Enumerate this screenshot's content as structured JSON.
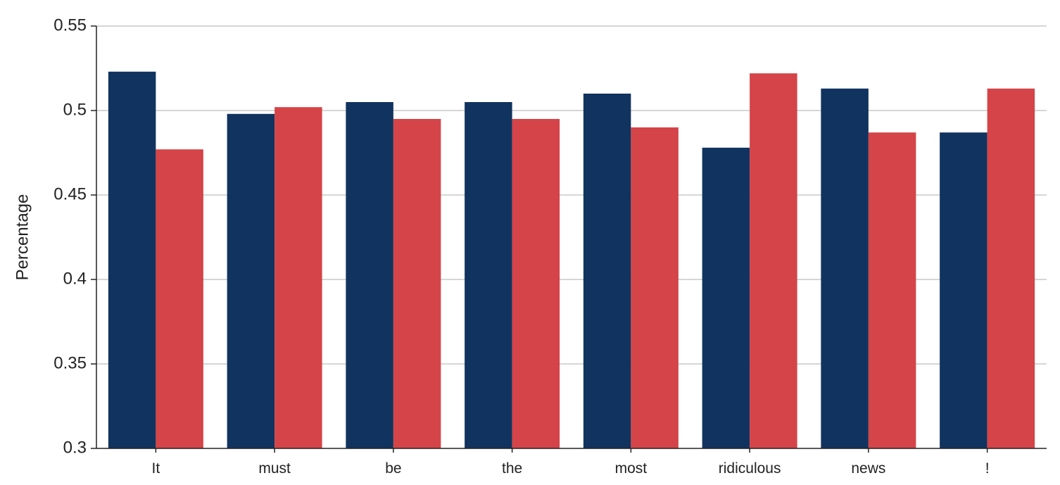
{
  "chart_data": {
    "type": "bar",
    "title": "",
    "xlabel": "",
    "ylabel": "Percentage",
    "ylim": [
      0.3,
      0.55
    ],
    "yticks": [
      0.3,
      0.35,
      0.4,
      0.45,
      0.5,
      0.55
    ],
    "ytick_labels": [
      "0.3",
      "0.35",
      "0.4",
      "0.45",
      "0.5",
      "0.55"
    ],
    "grid": "horizontal",
    "legend": "none",
    "categories": [
      "It",
      "must",
      "be",
      "the",
      "most",
      "ridiculous",
      "news",
      "!"
    ],
    "series": [
      {
        "color": "#11335f",
        "values": [
          0.523,
          0.498,
          0.505,
          0.505,
          0.51,
          0.478,
          0.513,
          0.487
        ]
      },
      {
        "color": "#d44448",
        "values": [
          0.477,
          0.502,
          0.495,
          0.495,
          0.49,
          0.522,
          0.487,
          0.513
        ]
      }
    ]
  }
}
